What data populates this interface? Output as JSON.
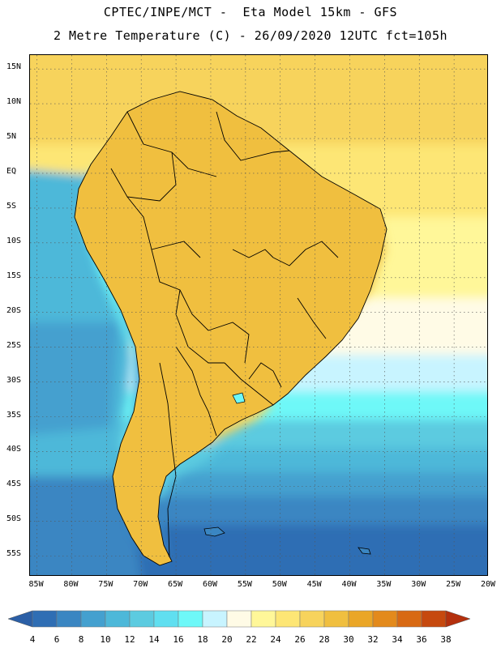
{
  "header": {
    "line1": "CPTEC/INPE/MCT -  Eta Model 15km - GFS",
    "line2": "2 Metre Temperature (C) - 26/09/2020 12UTC fct=105h"
  },
  "map": {
    "lat_range": [
      -58,
      17
    ],
    "lon_range": [
      -86,
      -20
    ],
    "lat_labels": [
      "15N",
      "10N",
      "5N",
      "EQ",
      "5S",
      "10S",
      "15S",
      "20S",
      "25S",
      "30S",
      "35S",
      "40S",
      "45S",
      "50S",
      "55S"
    ],
    "lat_values": [
      15,
      10,
      5,
      0,
      -5,
      -10,
      -15,
      -20,
      -25,
      -30,
      -35,
      -40,
      -45,
      -50,
      -55
    ],
    "lon_labels": [
      "85W",
      "80W",
      "75W",
      "70W",
      "65W",
      "60W",
      "55W",
      "50W",
      "45W",
      "40W",
      "35W",
      "30W",
      "25W",
      "20W"
    ],
    "lon_values": [
      -85,
      -80,
      -75,
      -70,
      -65,
      -60,
      -55,
      -50,
      -45,
      -40,
      -35,
      -30,
      -25,
      -20
    ]
  },
  "colorbar": {
    "labels": [
      "4",
      "6",
      "8",
      "10",
      "12",
      "14",
      "16",
      "18",
      "20",
      "22",
      "24",
      "26",
      "28",
      "30",
      "32",
      "34",
      "36",
      "38"
    ],
    "colors": [
      "#2b5fa6",
      "#2f6eb4",
      "#3a86c2",
      "#44a0cf",
      "#4db8d9",
      "#5ccbe0",
      "#60dff0",
      "#6ef8f8",
      "#c8f4ff",
      "#fffbe6",
      "#fff799",
      "#fde675",
      "#f7d35c",
      "#f0bf3f",
      "#eaa627",
      "#e38a1c",
      "#d86913",
      "#c6490e",
      "#b4300d"
    ]
  }
}
